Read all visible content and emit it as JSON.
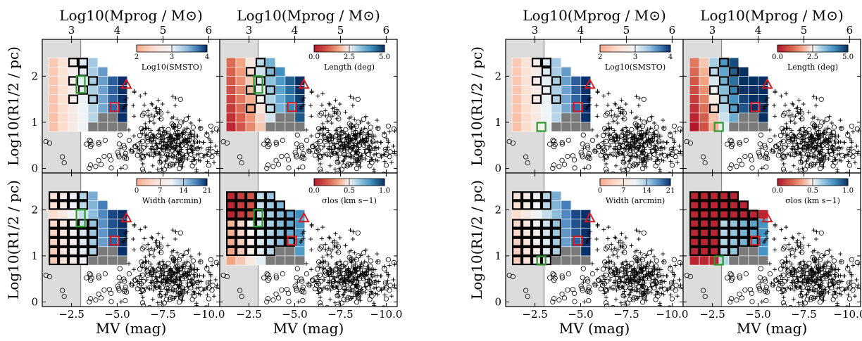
{
  "figure": {
    "top_axis_label": "Log10(Mprog / M⊙)",
    "bottom_axis_label": "MV  (mag)",
    "left_axis_label": "Log10(R1/2 / pc)",
    "top_ticks": [
      "3",
      "4",
      "5",
      "6"
    ],
    "bottom_ticks": [
      "−2.5",
      "−5.0",
      "−7.5",
      "−10.0"
    ],
    "left_ticks": [
      "0",
      "1",
      "2"
    ]
  },
  "chart_data": [
    {
      "type": "heatmap",
      "block": "left",
      "panels": [
        {
          "id": "smsto",
          "colorbar_label": "Log10(SMSTO)",
          "colormap": "blues",
          "clim": [
            2,
            4
          ],
          "ticks": [
            "2",
            "3",
            "4"
          ]
        },
        {
          "id": "length",
          "colorbar_label": "Length (deg)",
          "colormap": "red-blue",
          "clim": [
            0.0,
            5.0
          ],
          "ticks": [
            "0.0",
            "2.5",
            "5.0"
          ]
        },
        {
          "id": "width",
          "colorbar_label": "Width (arcmin)",
          "colormap": "blues",
          "clim": [
            0,
            21
          ],
          "ticks": [
            "0",
            "7",
            "14",
            "21"
          ]
        },
        {
          "id": "sigma",
          "colorbar_label": "σlos (km s−1)",
          "colormap": "red-blue",
          "clim": [
            0.0,
            1.0
          ],
          "ticks": [
            "0.0",
            "0.5",
            "1.0"
          ]
        }
      ],
      "x_range": [
        -0.9,
        -10.6
      ],
      "y_range": [
        -0.1,
        2.8
      ],
      "grid_x_range": [
        -1.25,
        -5.55
      ],
      "grid_y_range": [
        0.8,
        2.4
      ],
      "mass_limit_mv": -3.0,
      "square_marker": {
        "x": -4.85,
        "y": 1.33
      },
      "triangle_marker": {
        "x": -5.5,
        "y": 1.82
      },
      "green_marker": {
        "x": -3.0,
        "y": 1.82
      }
    },
    {
      "type": "heatmap",
      "block": "right",
      "panels": [
        {
          "id": "smsto",
          "colorbar_label": "Log10(SMSTO)",
          "colormap": "blues",
          "clim": [
            2,
            4
          ],
          "ticks": [
            "2",
            "3",
            "4"
          ]
        },
        {
          "id": "length",
          "colorbar_label": "Length (deg)",
          "colormap": "red-blue",
          "clim": [
            0.0,
            5.0
          ],
          "ticks": [
            "0.0",
            "2.5",
            "5.0"
          ]
        },
        {
          "id": "width",
          "colorbar_label": "Width (arcmin)",
          "colormap": "blues",
          "clim": [
            0,
            21
          ],
          "ticks": [
            "0",
            "7",
            "14",
            "21"
          ]
        },
        {
          "id": "sigma",
          "colorbar_label": "σlos (km s−1)",
          "colormap": "red-blue",
          "clim": [
            0.0,
            1.0
          ],
          "ticks": [
            "0.0",
            "0.5",
            "1.0"
          ]
        }
      ],
      "x_range": [
        -0.9,
        -10.6
      ],
      "y_range": [
        -0.1,
        2.8
      ],
      "grid_x_range": [
        -1.25,
        -5.55
      ],
      "grid_y_range": [
        0.8,
        2.4
      ],
      "mass_limit_mv": -3.0,
      "square_marker": {
        "x": -4.85,
        "y": 1.33
      },
      "triangle_marker": {
        "x": -5.5,
        "y": 1.82
      },
      "green_marker": {
        "x": -2.85,
        "y": 0.9
      }
    }
  ]
}
